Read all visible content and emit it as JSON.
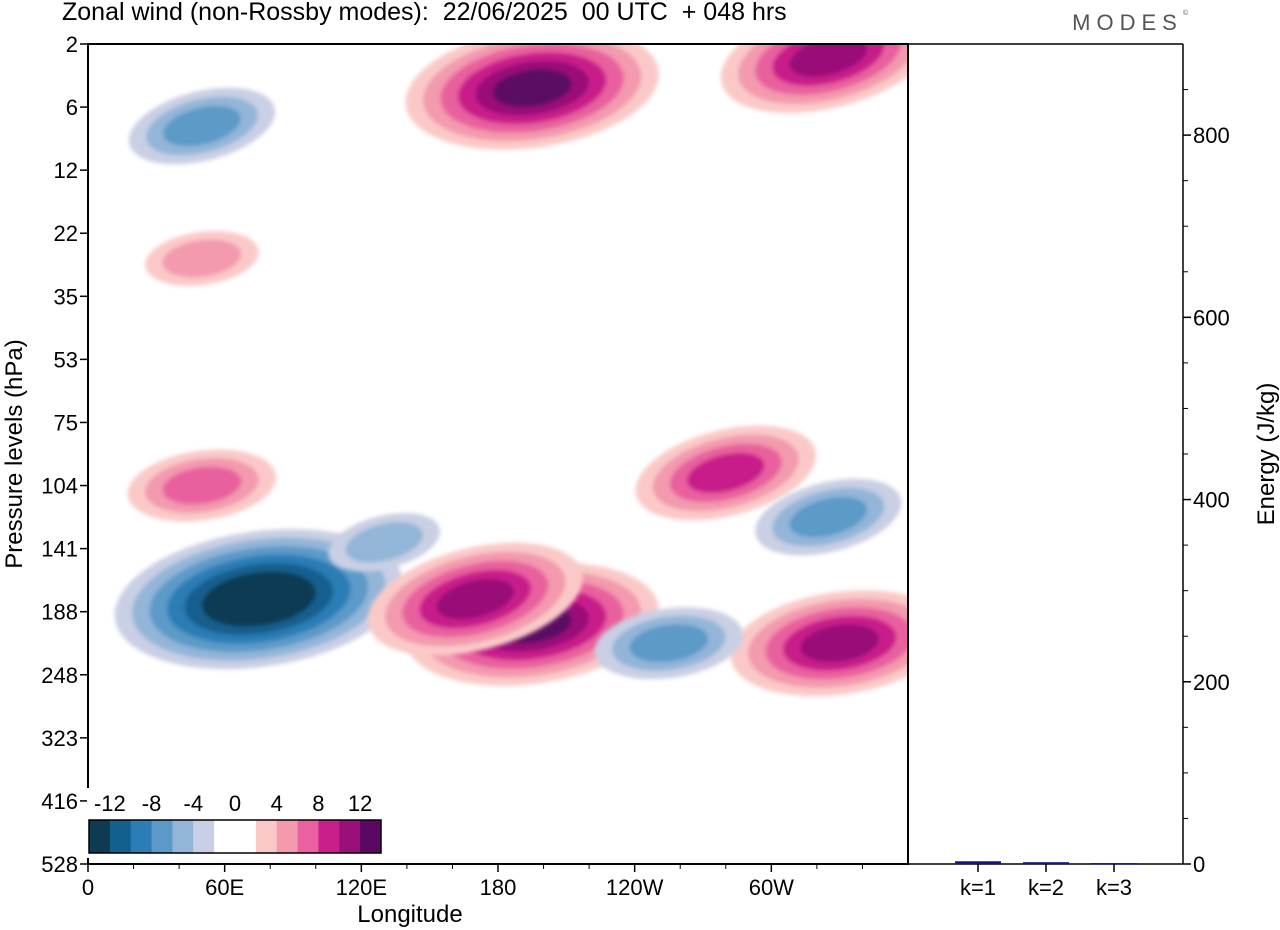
{
  "header": {
    "title": "Zonal wind (non-Rossby modes):  22/06/2025  00 UTC  + 048 hrs",
    "brand": "MODES",
    "brand_mark": "©"
  },
  "chart_data": [
    {
      "type": "heatmap",
      "title": "Zonal wind (non-Rossby modes):  22/06/2025  00 UTC  + 048 hrs",
      "xlabel": "Longitude",
      "ylabel": "Pressure levels (hPa)",
      "x_ticks": [
        "0",
        "60E",
        "120E",
        "180",
        "120W",
        "60W"
      ],
      "x_range_deg": [
        0,
        360
      ],
      "y_ticks": [
        "2",
        "6",
        "12",
        "22",
        "35",
        "53",
        "75",
        "104",
        "141",
        "188",
        "248",
        "323",
        "416",
        "528"
      ],
      "y_order": "top-to-bottom",
      "colorbar": {
        "labels": [
          "-12",
          "-8",
          "-4",
          "0",
          "4",
          "8",
          "12"
        ],
        "levels": [
          -14,
          -12,
          -10,
          -8,
          -6,
          -4,
          -2,
          0,
          2,
          4,
          6,
          8,
          10,
          12,
          14
        ],
        "colors": [
          "#0f3b52",
          "#135f8e",
          "#2a7db5",
          "#5b9ac8",
          "#93b5d8",
          "#c9cfe4",
          "#ffffff",
          "#ffffff",
          "#fac9c7",
          "#f39aaf",
          "#e9619e",
          "#c81f8a",
          "#9a1079",
          "#5a0864"
        ]
      },
      "features": [
        {
          "lon": 75,
          "level_idx": 8.8,
          "value": -14
        },
        {
          "lon": 50,
          "level_idx": 1.3,
          "value": -6
        },
        {
          "lon": 195,
          "level_idx": 0.7,
          "value": 12
        },
        {
          "lon": 325,
          "level_idx": 0.2,
          "value": 10
        },
        {
          "lon": 195,
          "level_idx": 9.2,
          "value": 12
        },
        {
          "lon": 170,
          "level_idx": 8.8,
          "value": 10
        },
        {
          "lon": 330,
          "level_idx": 9.5,
          "value": 10
        },
        {
          "lon": 280,
          "level_idx": 6.8,
          "value": 8
        },
        {
          "lon": 50,
          "level_idx": 7.0,
          "value": 6
        },
        {
          "lon": 325,
          "level_idx": 7.5,
          "value": -6
        },
        {
          "lon": 50,
          "level_idx": 3.4,
          "value": 4
        },
        {
          "lon": 130,
          "level_idx": 7.9,
          "value": -4
        },
        {
          "lon": 255,
          "level_idx": 9.5,
          "value": -6
        }
      ]
    },
    {
      "type": "bar",
      "categories": [
        "k=1",
        "k=2",
        "k=3"
      ],
      "values": [
        3,
        2,
        1
      ],
      "ylabel": "Energy (J/kg)",
      "ylim": [
        0,
        900
      ],
      "y_ticks": [
        "0",
        "200",
        "400",
        "600",
        "800"
      ],
      "bar_color": "#14148a"
    }
  ]
}
